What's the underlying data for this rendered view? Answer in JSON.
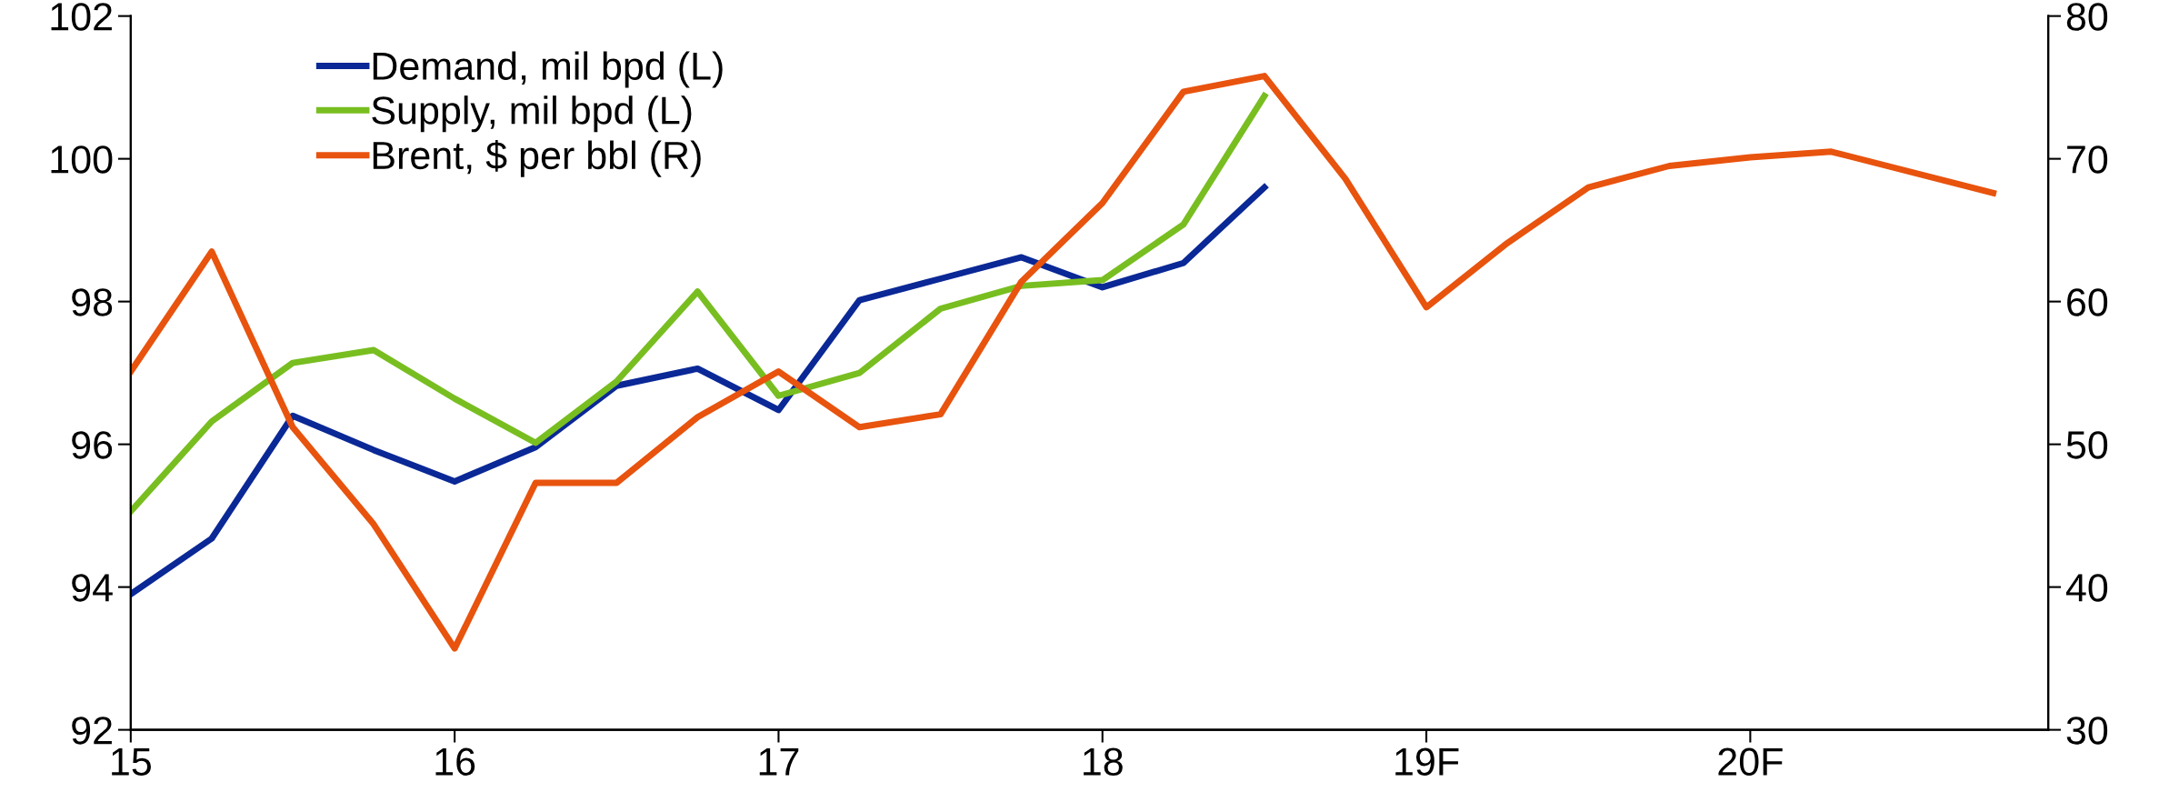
{
  "chart_data": {
    "type": "line",
    "xlim": [
      15,
      20.92
    ],
    "xticks": [
      {
        "value": 15,
        "label": "15"
      },
      {
        "value": 16,
        "label": "16"
      },
      {
        "value": 17,
        "label": "17"
      },
      {
        "value": 18,
        "label": "18"
      },
      {
        "value": 19,
        "label": "19F"
      },
      {
        "value": 20,
        "label": "20F"
      }
    ],
    "ylim": [
      92,
      102
    ],
    "yticks": [
      92,
      94,
      96,
      98,
      100,
      102
    ],
    "y2lim": [
      30,
      80
    ],
    "y2ticks": [
      30,
      40,
      50,
      60,
      70,
      80
    ],
    "grid": false,
    "legend": "top left",
    "marker": "none",
    "line_style": "solid",
    "series": [
      {
        "name": "Demand, mil bpd (L)",
        "color": "#0a2896",
        "x": [
          15,
          15.25,
          15.5,
          15.75,
          16,
          16.25,
          16.5,
          16.75,
          17,
          17.25,
          17.5,
          17.75,
          18,
          18.25,
          18.5
        ],
        "values": [
          93.9,
          94.68,
          96.4,
          95.92,
          95.48,
          95.96,
          96.82,
          97.06,
          96.48,
          98.02,
          98.32,
          98.62,
          98.2,
          98.54,
          99.6
        ]
      },
      {
        "name": "Supply, mil bpd (L)",
        "color": "#78be20",
        "x": [
          15,
          15.25,
          15.5,
          15.75,
          16,
          16.25,
          16.5,
          16.75,
          17,
          17.25,
          17.5,
          17.75,
          18,
          18.25,
          18.5
        ],
        "values": [
          95.06,
          96.32,
          97.14,
          97.32,
          96.64,
          96.02,
          96.88,
          98.14,
          96.68,
          97.0,
          97.9,
          98.22,
          98.3,
          99.08,
          100.88
        ]
      },
      {
        "name": "Brent, $ per bbl (R)",
        "color": "#e8530e",
        "axis": "y2",
        "x": [
          15,
          15.25,
          15.5,
          15.75,
          16,
          16.25,
          16.5,
          16.75,
          17,
          17.25,
          17.5,
          17.75,
          18,
          18.25,
          18.5,
          18.75,
          19,
          19.25,
          19.5,
          19.75,
          20,
          20.25,
          20.75
        ],
        "values": [
          55.1,
          63.5,
          51.2,
          44.4,
          35.7,
          47.3,
          47.3,
          51.9,
          55.1,
          51.2,
          52.1,
          61.4,
          66.9,
          74.7,
          75.8,
          68.6,
          59.6,
          64.1,
          68.0,
          69.5,
          70.1,
          70.5,
          67.6
        ]
      }
    ]
  }
}
